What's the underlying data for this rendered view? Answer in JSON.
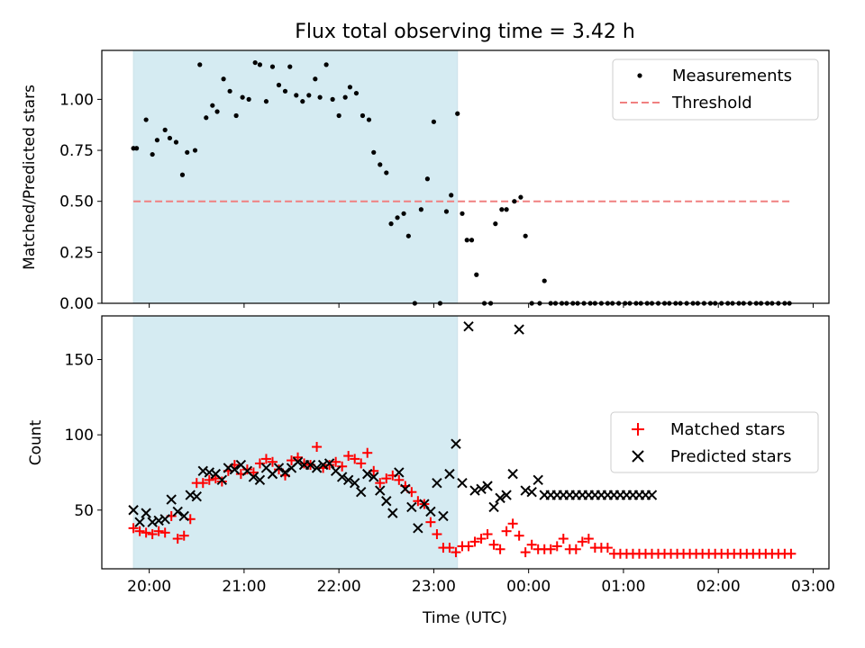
{
  "chart_data": [
    {
      "type": "scatter",
      "title": "Flux total observing time = 3.42 h",
      "xlabel": "",
      "ylabel": "Matched/Predicted stars",
      "ylim": [
        0,
        1.24
      ],
      "yticks": [
        "0.00",
        "0.25",
        "0.50",
        "0.75",
        "1.00"
      ],
      "xticks": [
        "20:00",
        "21:00",
        "22:00",
        "23:00",
        "00:00",
        "01:00",
        "02:00",
        "03:00"
      ],
      "shaded_region": {
        "from": "19:50",
        "to": "23:15",
        "color": "#add8e6"
      },
      "legend": {
        "position": "upper right"
      },
      "series": [
        {
          "name": "Measurements",
          "marker": "dot",
          "color": "#000000",
          "x": [
            "19:50",
            "19:52",
            "19:58",
            "20:02",
            "20:05",
            "20:10",
            "20:13",
            "20:17",
            "20:21",
            "20:24",
            "20:29",
            "20:32",
            "20:36",
            "20:40",
            "20:43",
            "20:47",
            "20:51",
            "20:55",
            "20:59",
            "21:03",
            "21:07",
            "21:10",
            "21:14",
            "21:18",
            "21:22",
            "21:26",
            "21:29",
            "21:33",
            "21:37",
            "21:41",
            "21:45",
            "21:48",
            "21:52",
            "21:56",
            "22:00",
            "22:04",
            "22:07",
            "22:11",
            "22:15",
            "22:19",
            "22:22",
            "22:26",
            "22:30",
            "22:33",
            "22:37",
            "22:41",
            "22:44",
            "22:48",
            "22:52",
            "22:56",
            "23:00",
            "23:04",
            "23:08",
            "23:11",
            "23:15",
            "23:18",
            "23:21",
            "23:24",
            "23:27",
            "23:32",
            "23:36",
            "23:39",
            "23:43",
            "23:46",
            "23:51",
            "23:55",
            "23:58",
            "00:02",
            "00:07",
            "00:10",
            "00:14",
            "00:17",
            "00:21",
            "00:24",
            "00:28",
            "00:31",
            "00:35",
            "00:39",
            "00:42",
            "00:46",
            "00:50",
            "00:53",
            "00:57",
            "01:01",
            "01:04",
            "01:08",
            "01:11",
            "01:15",
            "01:18",
            "01:22",
            "01:26",
            "01:29",
            "01:33",
            "01:36",
            "01:40",
            "01:44",
            "01:47",
            "01:51",
            "01:55",
            "01:58",
            "02:02",
            "02:06",
            "02:09",
            "02:13",
            "02:16",
            "02:20",
            "02:24",
            "02:27",
            "02:31",
            "02:34",
            "02:38",
            "02:42",
            "02:45"
          ],
          "y": [
            0.76,
            0.76,
            0.9,
            0.73,
            0.8,
            0.85,
            0.81,
            0.79,
            0.63,
            0.74,
            0.75,
            1.17,
            0.91,
            0.97,
            0.94,
            1.1,
            1.04,
            0.92,
            1.01,
            1.0,
            1.18,
            1.17,
            0.99,
            1.16,
            1.07,
            1.04,
            1.16,
            1.02,
            0.99,
            1.02,
            1.1,
            1.01,
            1.17,
            1.0,
            0.92,
            1.01,
            1.06,
            1.03,
            0.92,
            0.9,
            0.74,
            0.68,
            0.64,
            0.39,
            0.42,
            0.44,
            0.33,
            0.0,
            0.46,
            0.61,
            0.89,
            0.0,
            0.45,
            0.53,
            0.93,
            0.44,
            0.31,
            0.31,
            0.14,
            0.0,
            0.0,
            0.39,
            0.46,
            0.46,
            0.5,
            0.52,
            0.33,
            0.0,
            0.0,
            0.11,
            0.0,
            0.0,
            0.0,
            0.0,
            0.0,
            0.0,
            0.0,
            0.0,
            0.0,
            0.0,
            0.0,
            0.0,
            0.0,
            0.0,
            0.0,
            0.0,
            0.0,
            0.0,
            0.0,
            0.0,
            0.0,
            0.0,
            0.0,
            0.0,
            0.0,
            0.0,
            0.0,
            0.0,
            0.0,
            0.0,
            0.0,
            0.0,
            0.0,
            0.0,
            0.0,
            0.0,
            0.0,
            0.0,
            0.0,
            0.0,
            0.0,
            0.0,
            0.0
          ]
        },
        {
          "name": "Threshold",
          "marker": "dashed-line",
          "color": "#f08080",
          "x": [
            "19:50",
            "02:45"
          ],
          "y": [
            0.5,
            0.5
          ]
        }
      ]
    },
    {
      "type": "scatter",
      "title": "",
      "xlabel": "Time (UTC)",
      "ylabel": "Count",
      "ylim": [
        11,
        179
      ],
      "yticks": [
        "50",
        "100",
        "150"
      ],
      "xticks": [
        "20:00",
        "21:00",
        "22:00",
        "23:00",
        "00:00",
        "01:00",
        "02:00",
        "03:00"
      ],
      "shaded_region": {
        "from": "19:50",
        "to": "23:15",
        "color": "#add8e6"
      },
      "legend": {
        "position": "center right"
      },
      "series": [
        {
          "name": "Matched stars",
          "marker": "plus",
          "color": "#ff0000",
          "x": [
            "19:50",
            "19:54",
            "19:58",
            "20:02",
            "20:06",
            "20:10",
            "20:14",
            "20:18",
            "20:22",
            "20:26",
            "20:30",
            "20:34",
            "20:38",
            "20:42",
            "20:46",
            "20:50",
            "20:54",
            "20:58",
            "21:02",
            "21:06",
            "21:10",
            "21:14",
            "21:18",
            "21:22",
            "21:26",
            "21:30",
            "21:34",
            "21:38",
            "21:42",
            "21:46",
            "21:50",
            "21:54",
            "21:58",
            "22:02",
            "22:06",
            "22:10",
            "22:14",
            "22:18",
            "22:22",
            "22:26",
            "22:30",
            "22:34",
            "22:38",
            "22:42",
            "22:46",
            "22:50",
            "22:54",
            "22:58",
            "23:02",
            "23:06",
            "23:10",
            "23:14",
            "23:18",
            "23:22",
            "23:26",
            "23:30",
            "23:34",
            "23:38",
            "23:42",
            "23:46",
            "23:50",
            "23:54",
            "23:58",
            "00:02",
            "00:06",
            "00:10",
            "00:14",
            "00:18",
            "00:22",
            "00:26",
            "00:30",
            "00:34",
            "00:38",
            "00:42",
            "00:46",
            "00:50",
            "00:54",
            "00:58",
            "01:02",
            "01:06",
            "01:10",
            "01:14",
            "01:18",
            "01:22",
            "01:26",
            "01:30",
            "01:34",
            "01:38",
            "01:42",
            "01:46",
            "01:50",
            "01:54",
            "01:58",
            "02:02",
            "02:06",
            "02:10",
            "02:14",
            "02:18",
            "02:22",
            "02:26",
            "02:30",
            "02:34",
            "02:38",
            "02:42",
            "02:46"
          ],
          "y": [
            38,
            36,
            35,
            34,
            36,
            35,
            46,
            31,
            33,
            44,
            68,
            68,
            70,
            71,
            69,
            76,
            80,
            74,
            77,
            75,
            81,
            84,
            82,
            77,
            73,
            83,
            85,
            81,
            80,
            92,
            78,
            80,
            82,
            79,
            86,
            84,
            81,
            88,
            76,
            68,
            71,
            73,
            70,
            66,
            62,
            56,
            54,
            42,
            34,
            25,
            25,
            22,
            26,
            26,
            29,
            31,
            34,
            27,
            24,
            36,
            41,
            33,
            22,
            27,
            24,
            24,
            24,
            26,
            31,
            24,
            24,
            29,
            31,
            25,
            25,
            25,
            21,
            21,
            21,
            21,
            21,
            21,
            21,
            21,
            21,
            21,
            21,
            21,
            21,
            21,
            21,
            21,
            21,
            21,
            21,
            21,
            21,
            21,
            21,
            21,
            21,
            21,
            21,
            21,
            21
          ]
        },
        {
          "name": "Predicted stars",
          "marker": "x",
          "color": "#000000",
          "x": [
            "19:50",
            "19:54",
            "19:58",
            "20:02",
            "20:06",
            "20:10",
            "20:14",
            "20:18",
            "20:22",
            "20:26",
            "20:30",
            "20:34",
            "20:38",
            "20:42",
            "20:46",
            "20:50",
            "20:54",
            "20:58",
            "21:02",
            "21:06",
            "21:10",
            "21:14",
            "21:18",
            "21:22",
            "21:26",
            "21:30",
            "21:34",
            "21:38",
            "21:42",
            "21:46",
            "21:50",
            "21:54",
            "21:58",
            "22:02",
            "22:06",
            "22:10",
            "22:14",
            "22:18",
            "22:22",
            "22:26",
            "22:30",
            "22:34",
            "22:38",
            "22:42",
            "22:46",
            "22:50",
            "22:54",
            "22:58",
            "23:02",
            "23:06",
            "23:10",
            "23:14",
            "23:18",
            "23:22",
            "23:26",
            "23:30",
            "23:34",
            "23:38",
            "23:42",
            "23:46",
            "23:50",
            "23:54",
            "23:58",
            "00:02",
            "00:06",
            "00:10",
            "00:14",
            "00:18",
            "00:22",
            "00:26",
            "00:30",
            "00:34",
            "00:38",
            "00:42",
            "00:46",
            "00:50",
            "00:54",
            "00:58",
            "01:02",
            "01:06",
            "01:10",
            "01:14",
            "01:18"
          ],
          "y": [
            50,
            42,
            48,
            42,
            43,
            44,
            57,
            49,
            46,
            60,
            59,
            76,
            75,
            74,
            70,
            78,
            77,
            80,
            76,
            72,
            70,
            78,
            74,
            78,
            75,
            78,
            82,
            80,
            80,
            78,
            80,
            81,
            76,
            72,
            70,
            68,
            62,
            74,
            72,
            63,
            56,
            48,
            75,
            64,
            52,
            38,
            54,
            49,
            68,
            46,
            74,
            94,
            68,
            172,
            63,
            64,
            66,
            52,
            58,
            60,
            74,
            170,
            63,
            62,
            70,
            60,
            60,
            60,
            60,
            60,
            60,
            60,
            60,
            60,
            60,
            60,
            60,
            60,
            60,
            60,
            60,
            60,
            60
          ]
        }
      ]
    }
  ]
}
